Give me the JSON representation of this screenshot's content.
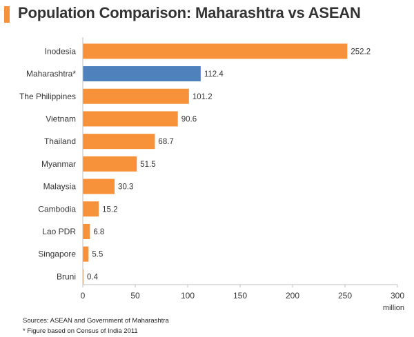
{
  "chart_data": {
    "type": "bar",
    "orientation": "horizontal",
    "title": "Population Comparison: Maharashtra vs ASEAN",
    "categories": [
      "Inodesia",
      "Maharashtra*",
      "The Philippines",
      "Vietnam",
      "Thailand",
      "Myanmar",
      "Malaysia",
      "Cambodia",
      "Lao PDR",
      "Singapore",
      "Bruni"
    ],
    "values": [
      252.2,
      112.4,
      101.2,
      90.6,
      68.7,
      51.5,
      30.3,
      15.2,
      6.8,
      5.5,
      0.4
    ],
    "value_labels": [
      "252.2",
      "112.4",
      "101.2",
      "90.6",
      "68.7",
      "51.5",
      "30.3",
      "15.2",
      "6.8",
      "5.5",
      "0.4"
    ],
    "highlight_index": 1,
    "xlim": [
      0,
      300
    ],
    "xticks": [
      0,
      50,
      100,
      150,
      200,
      250,
      300
    ],
    "xlabel": "million",
    "ylabel": "",
    "grid": false,
    "legend": "none",
    "colors": {
      "default": "#f7913a",
      "highlight": "#4f81bd",
      "axis": "#bfbfbf"
    }
  },
  "notes": {
    "source": "Sources: ASEAN and Government of Maharashtra",
    "footnote": "* Figure based on Census of India 2011"
  }
}
